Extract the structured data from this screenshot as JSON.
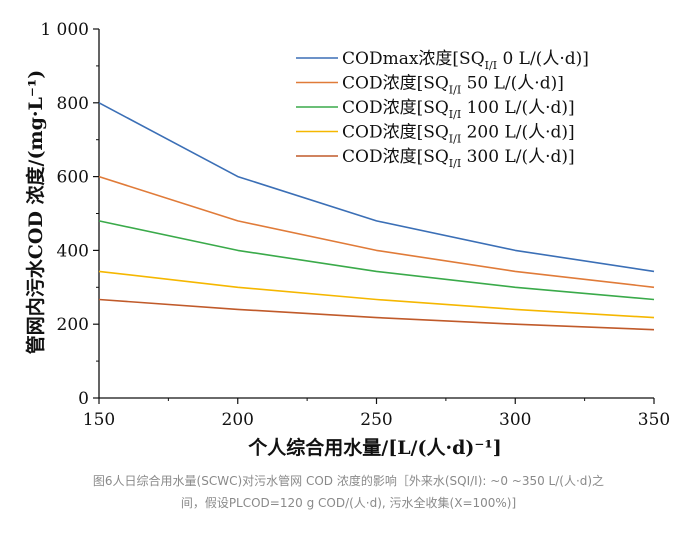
{
  "caption": {
    "line1": "图6人日综合用水量(SCWC)对污水管网 COD 浓度的影响［外来水(SQI/I): ~0 ~350 L/(人·d)之",
    "line2": "间，假设PLCOD=120 g COD/(人·d), 污水全收集(X=100%)]"
  },
  "chart_data": {
    "type": "line",
    "xlabel": "个人综合用水量/[L/(人·d)⁻¹]",
    "ylabel": "管网内污水COD 浓度/(mg·L⁻¹)",
    "xlim": [
      150,
      350
    ],
    "ylim": [
      0,
      1000
    ],
    "x_ticks": [
      150,
      200,
      250,
      300,
      350
    ],
    "y_ticks": [
      0,
      200,
      400,
      600,
      800,
      1000
    ],
    "x_tick_labels": [
      "150",
      "200",
      "250",
      "300",
      "350"
    ],
    "y_tick_labels": [
      "0",
      "200",
      "400",
      "600",
      "800",
      "1 000"
    ],
    "grid": false,
    "legend_position": "top-right",
    "x": [
      150,
      200,
      250,
      300,
      350
    ],
    "series": [
      {
        "name": "CODmax浓度[SQI/I 0 L/(人·d)]",
        "legend_parts": [
          "CODmax浓度[SQ",
          "I/I",
          " 0 L/(人·d)]"
        ],
        "color": "#3b6fb6",
        "values": [
          800,
          600,
          480,
          400,
          343
        ]
      },
      {
        "name": "COD浓度[SQI/I 50 L/(人·d)]",
        "legend_parts": [
          "COD浓度[SQ",
          "I/I",
          " 50 L/(人·d)]"
        ],
        "color": "#e07b39",
        "values": [
          600,
          480,
          400,
          343,
          300
        ]
      },
      {
        "name": "COD浓度[SQI/I 100 L/(人·d)]",
        "legend_parts": [
          "COD浓度[SQ",
          "I/I",
          " 100 L/(人·d)]"
        ],
        "color": "#3aaa4a",
        "values": [
          480,
          400,
          343,
          300,
          267
        ]
      },
      {
        "name": "COD浓度[SQI/I 200 L/(人·d)]",
        "legend_parts": [
          "COD浓度[SQ",
          "I/I",
          " 200 L/(人·d)]"
        ],
        "color": "#f5b700",
        "values": [
          343,
          300,
          267,
          240,
          218
        ]
      },
      {
        "name": "COD浓度[SQI/I 300 L/(人·d)]",
        "legend_parts": [
          "COD浓度[SQ",
          "I/I",
          " 300 L/(人·d)]"
        ],
        "color": "#c05a2a",
        "values": [
          267,
          240,
          218,
          200,
          185
        ]
      }
    ]
  }
}
